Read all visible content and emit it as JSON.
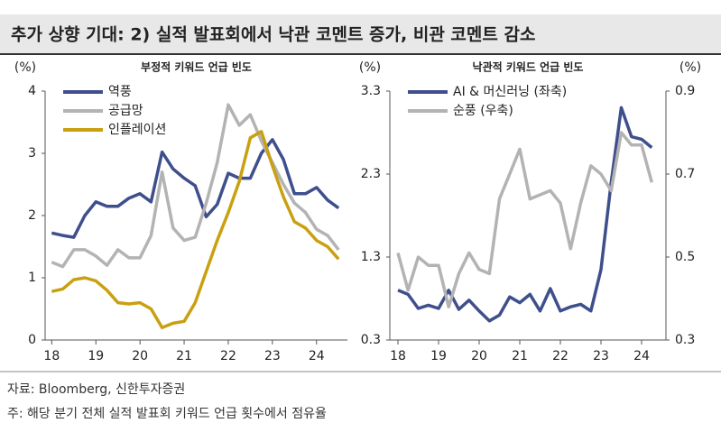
{
  "title": "추가 상향 기대: 2) 실적 발표회에서 낙관 코멘트 증가, 비관 코멘트 감소",
  "notes": [
    "자료: Bloomberg, 신한투자증권",
    "주: 해당 분기 전체 실적 발표회 키워드 언급 횟수에서 점유율"
  ],
  "chart_data": [
    {
      "type": "line",
      "title": "부정적 키워드 언급 빈도",
      "ylabel": "(%)",
      "x": [
        18,
        18.25,
        18.5,
        18.75,
        19,
        19.25,
        19.5,
        19.75,
        20,
        20.25,
        20.5,
        20.75,
        21,
        21.25,
        21.5,
        21.75,
        22,
        22.25,
        22.5,
        22.75,
        23,
        23.25,
        23.5,
        23.75,
        24,
        24.25,
        24.5
      ],
      "xlim": [
        17.85,
        24.7
      ],
      "xticks": [
        18,
        19,
        20,
        21,
        22,
        23,
        24
      ],
      "ylim": [
        0,
        4
      ],
      "yticks": [
        0,
        1,
        2,
        3,
        4
      ],
      "grid": false,
      "legend": "top-left",
      "series": [
        {
          "name": "역풍",
          "color": "#3e4f8c",
          "values": [
            1.72,
            1.68,
            1.65,
            2.0,
            2.22,
            2.15,
            2.15,
            2.28,
            2.35,
            2.22,
            3.02,
            2.75,
            2.6,
            2.48,
            1.98,
            2.18,
            2.68,
            2.6,
            2.6,
            3.0,
            3.22,
            2.9,
            2.35,
            2.35,
            2.45,
            2.25,
            2.12
          ]
        },
        {
          "name": "공급망",
          "color": "#b3b3b3",
          "values": [
            1.25,
            1.18,
            1.45,
            1.45,
            1.35,
            1.2,
            1.45,
            1.32,
            1.32,
            1.68,
            2.7,
            1.8,
            1.6,
            1.65,
            2.2,
            2.85,
            3.78,
            3.45,
            3.62,
            3.2,
            2.85,
            2.5,
            2.2,
            2.05,
            1.78,
            1.68,
            1.45
          ]
        },
        {
          "name": "인플레이션",
          "color": "#c9a012",
          "values": [
            0.78,
            0.82,
            0.97,
            1.0,
            0.95,
            0.8,
            0.6,
            0.58,
            0.6,
            0.5,
            0.2,
            0.27,
            0.3,
            0.6,
            1.1,
            1.6,
            2.05,
            2.55,
            3.25,
            3.35,
            2.8,
            2.3,
            1.9,
            1.8,
            1.6,
            1.5,
            1.3
          ]
        }
      ]
    },
    {
      "type": "line",
      "title": "낙관적 키워드 언급 빈도",
      "ylabel": "(%)",
      "y2label": "(%)",
      "x": [
        18,
        18.25,
        18.5,
        18.75,
        19,
        19.25,
        19.5,
        19.75,
        20,
        20.25,
        20.5,
        20.75,
        21,
        21.25,
        21.5,
        21.75,
        22,
        22.25,
        22.5,
        22.75,
        23,
        23.25,
        23.5,
        23.75,
        24,
        24.25
      ],
      "xlim": [
        17.8,
        24.6
      ],
      "xticks": [
        18,
        19,
        20,
        21,
        22,
        23,
        24
      ],
      "ylim": [
        0.3,
        3.3
      ],
      "yticks": [
        0.3,
        1.3,
        2.3,
        3.3
      ],
      "y2lim": [
        0.3,
        0.9
      ],
      "y2ticks": [
        0.3,
        0.5,
        0.7,
        0.9
      ],
      "grid": false,
      "legend": "top-left",
      "series": [
        {
          "name": "AI & 머신러닝 (좌축)",
          "color": "#3e4f8c",
          "values": [
            0.9,
            0.85,
            0.68,
            0.72,
            0.68,
            0.9,
            0.67,
            0.78,
            0.65,
            0.53,
            0.6,
            0.82,
            0.75,
            0.85,
            0.65,
            0.92,
            0.65,
            0.7,
            0.73,
            0.65,
            1.15,
            2.2,
            3.1,
            2.75,
            2.72,
            2.62
          ]
        },
        {
          "name": "순풍 (우축)",
          "color": "#b3b3b3",
          "axis": "y2",
          "values": [
            0.51,
            0.42,
            0.5,
            0.48,
            0.48,
            0.38,
            0.46,
            0.51,
            0.47,
            0.46,
            0.64,
            0.7,
            0.76,
            0.64,
            0.65,
            0.66,
            0.63,
            0.52,
            0.63,
            0.72,
            0.7,
            0.66,
            0.8,
            0.77,
            0.77,
            0.68
          ]
        }
      ]
    }
  ]
}
